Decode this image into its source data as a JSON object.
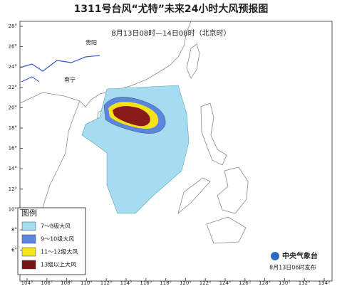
{
  "header": {
    "title": "1311号台风“尤特”未来24小时大风预报图",
    "subtitle": "8月13日08时—14日08时（北京时）"
  },
  "axes": {
    "lat_labels": [
      "28°",
      "26°",
      "24°",
      "22°",
      "20°",
      "18°",
      "16°",
      "14°",
      "12°",
      "10°",
      "8°",
      "6°"
    ],
    "lon_labels": [
      "104°",
      "106°",
      "108°",
      "110°",
      "112°",
      "114°",
      "116°",
      "118°",
      "120°",
      "122°",
      "124°",
      "126°",
      "128°",
      "130°",
      "132°",
      "134°"
    ]
  },
  "places": [
    "贵阳",
    "南宁"
  ],
  "legend": {
    "title": "图例",
    "items": [
      "7～8级大风",
      "9～10级大风",
      "11～12级大风",
      "13级以上大风"
    ]
  },
  "footer": {
    "agency": "中央气象台",
    "issued": "8月13日06时发布"
  }
}
